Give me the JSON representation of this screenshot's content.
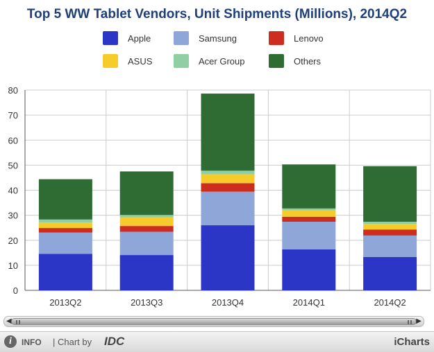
{
  "chart_data": {
    "type": "bar",
    "stacked": true,
    "title": "Top 5 WW Tablet Vendors, Unit Shipments (Millions), 2014Q2",
    "xlabel": "",
    "ylabel": "",
    "categories": [
      "2013Q2",
      "2013Q3",
      "2013Q4",
      "2014Q1",
      "2014Q2"
    ],
    "ylim": [
      0,
      80
    ],
    "yticks": [
      0,
      10,
      20,
      30,
      40,
      50,
      60,
      70,
      80
    ],
    "grid": true,
    "legend_position": "top",
    "series": [
      {
        "name": "Apple",
        "color": "#2b35c6",
        "values": [
          14.6,
          14.1,
          26.0,
          16.4,
          13.3
        ]
      },
      {
        "name": "Samsung",
        "color": "#8ea6d8",
        "values": [
          8.5,
          9.3,
          13.4,
          11.0,
          8.6
        ]
      },
      {
        "name": "Lenovo",
        "color": "#cc2d1f",
        "values": [
          1.8,
          2.3,
          3.4,
          2.0,
          2.4
        ]
      },
      {
        "name": "ASUS",
        "color": "#f6cc2d",
        "values": [
          2.2,
          3.4,
          3.5,
          2.5,
          2.2
        ]
      },
      {
        "name": "Acer Group",
        "color": "#8fcfa3",
        "values": [
          1.2,
          1.0,
          1.5,
          0.8,
          0.9
        ]
      },
      {
        "name": "Others",
        "color": "#2f6c33",
        "values": [
          16.1,
          17.4,
          30.8,
          17.6,
          22.2
        ]
      }
    ]
  },
  "footer": {
    "info_label": "INFO",
    "info_icon_glyph": "i",
    "chart_by_label": "| Chart by",
    "source_label": "IDC",
    "brand_label": "iCharts"
  },
  "scrollbar": {
    "left_arrow": "◀",
    "right_arrow": "▶"
  },
  "icons": [
    "info-icon",
    "scroll-left-arrow-icon",
    "scroll-right-arrow-icon"
  ]
}
